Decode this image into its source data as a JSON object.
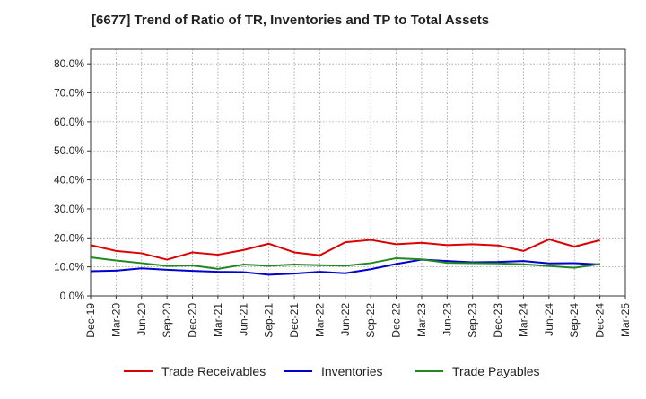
{
  "chart_data": {
    "type": "line",
    "title": "[6677]  Trend of Ratio of TR, Inventories and TP to Total Assets",
    "xlabel": "",
    "ylabel": "",
    "categories": [
      "Dec-19",
      "Mar-20",
      "Jun-20",
      "Sep-20",
      "Dec-20",
      "Mar-21",
      "Jun-21",
      "Sep-21",
      "Dec-21",
      "Mar-22",
      "Jun-22",
      "Sep-22",
      "Dec-22",
      "Mar-23",
      "Jun-23",
      "Sep-23",
      "Dec-23",
      "Mar-24",
      "Jun-24",
      "Sep-24",
      "Dec-24",
      "Mar-25"
    ],
    "ylim": [
      0,
      85
    ],
    "yticks": [
      0,
      10,
      20,
      30,
      40,
      50,
      60,
      70,
      80
    ],
    "ytick_labels": [
      "0.0%",
      "10.0%",
      "20.0%",
      "30.0%",
      "40.0%",
      "50.0%",
      "60.0%",
      "70.0%",
      "80.0%"
    ],
    "grid": true,
    "legend_position": "bottom",
    "series": [
      {
        "name": "Trade Receivables",
        "color": "#dd0000",
        "values": [
          17.5,
          15.5,
          14.7,
          12.5,
          15.0,
          14.2,
          15.8,
          18.0,
          15.0,
          14.0,
          18.5,
          19.3,
          17.8,
          18.3,
          17.5,
          17.8,
          17.4,
          15.5,
          19.5,
          17.0,
          19.2,
          null
        ]
      },
      {
        "name": "Inventories",
        "color": "#0000cc",
        "values": [
          8.5,
          8.7,
          9.5,
          9.0,
          8.6,
          8.3,
          8.2,
          7.3,
          7.7,
          8.3,
          7.8,
          9.2,
          11.0,
          12.5,
          12.0,
          11.6,
          11.7,
          12.0,
          11.2,
          11.3,
          10.8,
          null
        ]
      },
      {
        "name": "Trade Payables",
        "color": "#228822",
        "values": [
          13.3,
          12.2,
          11.3,
          10.3,
          10.5,
          9.3,
          10.8,
          10.4,
          10.8,
          10.6,
          10.4,
          11.3,
          13.0,
          12.6,
          11.4,
          11.3,
          11.2,
          10.9,
          10.3,
          9.7,
          11.0,
          null
        ]
      }
    ]
  }
}
